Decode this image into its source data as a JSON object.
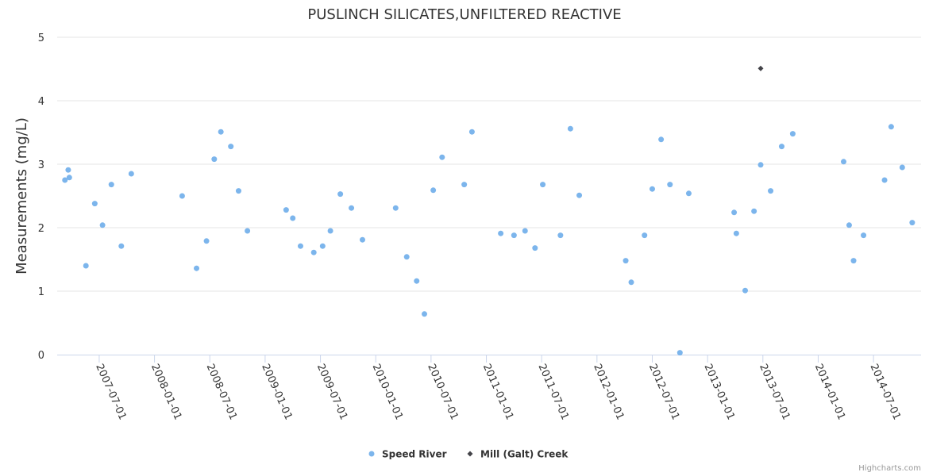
{
  "chart_data": {
    "type": "scatter",
    "title": "PUSLINCH SILICATES,UNFILTERED REACTIVE",
    "ylabel": "Measurements (mg/L)",
    "xlabel": "",
    "x_units": "decimal year",
    "xlim": [
      2007.12,
      2014.93
    ],
    "ylim": [
      0,
      5
    ],
    "yticks": [
      0,
      1,
      2,
      3,
      4,
      5
    ],
    "xticks": [
      {
        "value": 2007.5,
        "label": "2007-07-01"
      },
      {
        "value": 2008.0,
        "label": "2008-01-01"
      },
      {
        "value": 2008.5,
        "label": "2008-07-01"
      },
      {
        "value": 2009.0,
        "label": "2009-01-01"
      },
      {
        "value": 2009.5,
        "label": "2009-07-01"
      },
      {
        "value": 2010.0,
        "label": "2010-01-01"
      },
      {
        "value": 2010.5,
        "label": "2010-07-01"
      },
      {
        "value": 2011.0,
        "label": "2011-01-01"
      },
      {
        "value": 2011.5,
        "label": "2011-07-01"
      },
      {
        "value": 2012.0,
        "label": "2012-01-01"
      },
      {
        "value": 2012.5,
        "label": "2012-07-01"
      },
      {
        "value": 2013.0,
        "label": "2013-01-01"
      },
      {
        "value": 2013.5,
        "label": "2013-07-01"
      },
      {
        "value": 2014.0,
        "label": "2014-01-01"
      },
      {
        "value": 2014.5,
        "label": "2014-07-01"
      }
    ],
    "grid": true,
    "legend_position": "bottom-center",
    "series": [
      {
        "name": "Speed River",
        "color": "#7cb5ec",
        "marker": "circle",
        "points": [
          [
            2007.19,
            2.75
          ],
          [
            2007.22,
            2.91
          ],
          [
            2007.23,
            2.79
          ],
          [
            2007.38,
            1.4
          ],
          [
            2007.46,
            2.38
          ],
          [
            2007.53,
            2.04
          ],
          [
            2007.61,
            2.68
          ],
          [
            2007.7,
            1.71
          ],
          [
            2007.79,
            2.85
          ],
          [
            2008.25,
            2.5
          ],
          [
            2008.38,
            1.36
          ],
          [
            2008.47,
            1.79
          ],
          [
            2008.54,
            3.08
          ],
          [
            2008.6,
            3.51
          ],
          [
            2008.69,
            3.28
          ],
          [
            2008.76,
            2.58
          ],
          [
            2008.84,
            1.95
          ],
          [
            2009.19,
            2.28
          ],
          [
            2009.25,
            2.15
          ],
          [
            2009.32,
            1.71
          ],
          [
            2009.44,
            1.61
          ],
          [
            2009.52,
            1.71
          ],
          [
            2009.59,
            1.95
          ],
          [
            2009.68,
            2.53
          ],
          [
            2009.78,
            2.31
          ],
          [
            2009.88,
            1.81
          ],
          [
            2010.18,
            2.31
          ],
          [
            2010.28,
            1.54
          ],
          [
            2010.37,
            1.16
          ],
          [
            2010.44,
            0.64
          ],
          [
            2010.52,
            2.59
          ],
          [
            2010.6,
            3.11
          ],
          [
            2010.8,
            2.68
          ],
          [
            2010.87,
            3.51
          ],
          [
            2011.13,
            1.91
          ],
          [
            2011.25,
            1.88
          ],
          [
            2011.35,
            1.95
          ],
          [
            2011.44,
            1.68
          ],
          [
            2011.51,
            2.68
          ],
          [
            2011.67,
            1.88
          ],
          [
            2011.76,
            3.56
          ],
          [
            2011.84,
            2.51
          ],
          [
            2012.26,
            1.48
          ],
          [
            2012.31,
            1.14
          ],
          [
            2012.43,
            1.88
          ],
          [
            2012.5,
            2.61
          ],
          [
            2012.58,
            3.39
          ],
          [
            2012.66,
            2.68
          ],
          [
            2012.75,
            0.03
          ],
          [
            2012.83,
            2.54
          ],
          [
            2013.24,
            2.24
          ],
          [
            2013.26,
            1.91
          ],
          [
            2013.34,
            1.01
          ],
          [
            2013.42,
            2.26
          ],
          [
            2013.48,
            2.99
          ],
          [
            2013.57,
            2.58
          ],
          [
            2013.67,
            3.28
          ],
          [
            2013.77,
            3.48
          ],
          [
            2014.23,
            3.04
          ],
          [
            2014.28,
            2.04
          ],
          [
            2014.32,
            1.48
          ],
          [
            2014.41,
            1.88
          ],
          [
            2014.6,
            2.75
          ],
          [
            2014.66,
            3.59
          ],
          [
            2014.76,
            2.95
          ],
          [
            2014.85,
            2.08
          ]
        ]
      },
      {
        "name": "Mill (Galt) Creek",
        "color": "#434348",
        "marker": "diamond",
        "points": [
          [
            2013.48,
            4.51
          ]
        ]
      }
    ]
  },
  "credits": "Highcharts.com"
}
